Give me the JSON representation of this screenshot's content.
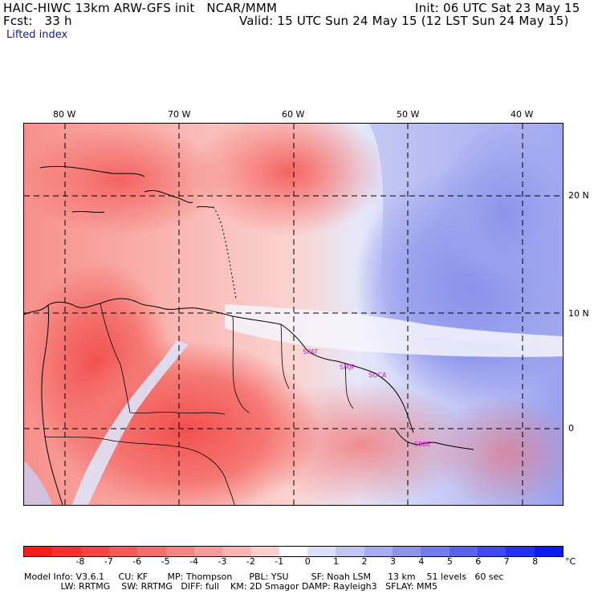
{
  "header": {
    "model_line": "HAIC-HIWC 13km ARW-GFS init   NCAR/MMM",
    "fcst_line": "Fcst:   33 h",
    "init_line": "Init: 06 UTC Sat 23 May 15",
    "valid_line": "Valid: 15 UTC Sun 24 May 15 (12 LST Sun 24 May 15)",
    "field_name": "Lifted index"
  },
  "map": {
    "longitude_labels": [
      "80 W",
      "70 W",
      "60 W",
      "50 W",
      "40 W"
    ],
    "latitude_labels": [
      "20 N",
      "10 N",
      "0"
    ],
    "stations": [
      "SPAT",
      "SMJP",
      "SOCA",
      "SBBE"
    ],
    "colors": {
      "strong_negative": "#f5504e",
      "moderate_negative": "#f6817c",
      "weak_negative": "#fbc1bd",
      "neutral": "#fdf3f2",
      "weak_positive": "#d9dcf7",
      "moderate_positive": "#9fa6f0",
      "strong_positive": "#6a72e6",
      "coastline": "#000000"
    }
  },
  "colorbar": {
    "ticks": [
      "-8",
      "-7",
      "-6",
      "-5",
      "-4",
      "-3",
      "-2",
      "-1",
      "0",
      "1",
      "2",
      "3",
      "4",
      "5",
      "6",
      "7",
      "8"
    ],
    "unit": "°C",
    "colors": [
      "#ff1a1a",
      "#ff2f2f",
      "#fb4545",
      "#f65a5a",
      "#f46e6e",
      "#f58585",
      "#f79c9c",
      "#f9b5b5",
      "#fccfcf",
      "#ffffff",
      "#dde0f6",
      "#c2c6f2",
      "#a7adee",
      "#8d94ea",
      "#737bea",
      "#5962ec",
      "#3f49ee",
      "#2530f0",
      "#0d1af2"
    ]
  },
  "footer": {
    "line1": "Model Info: V3.6.1     CU: KF       MP: Thompson      PBL: YSU        SF: Noah LSM      13 km    51 levels   60 sec",
    "line2": "             LW: RRTMG    SW: RRTMG   DIFF: full    KM: 2D Smagor DAMP: Rayleigh3   SFLAY: MM5"
  }
}
